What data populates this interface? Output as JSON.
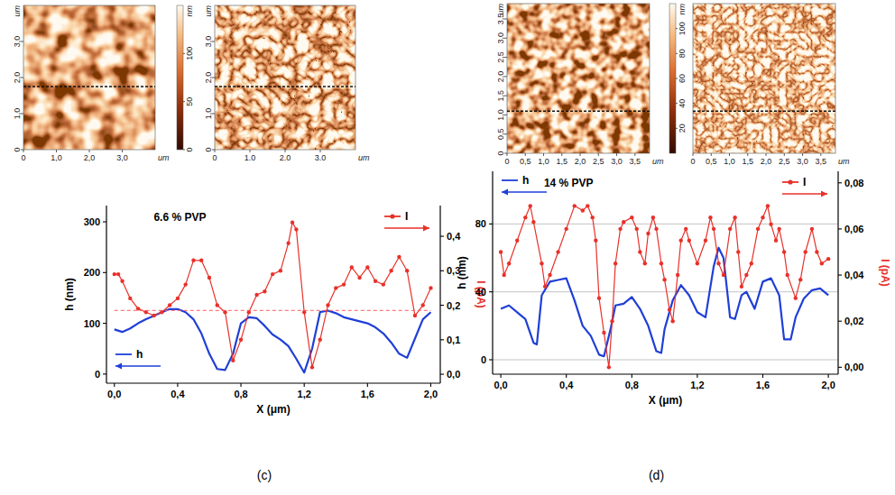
{
  "chart_data": [
    {
      "type": "image",
      "xlim": [
        0,
        4
      ],
      "xticks": [
        0,
        {
          "value": 1,
          "label": "1,0"
        },
        {
          "value": 2,
          "label": "2,0"
        },
        {
          "value": 3,
          "label": "3,0"
        }
      ],
      "x_label": "um",
      "ylim": [
        0,
        4
      ],
      "yticks": [
        0,
        {
          "value": 1,
          "label": "1,0"
        },
        {
          "value": 2,
          "label": "2,0"
        },
        {
          "value": 3,
          "label": "3,0"
        }
      ],
      "y_label": "um",
      "profile_y": 1.75
    },
    {
      "type": "image",
      "xlim": [
        0,
        4
      ],
      "xticks": [
        0,
        {
          "value": 1,
          "label": "1.0"
        },
        {
          "value": 2,
          "label": "2.0"
        },
        {
          "value": 3,
          "label": "3.0"
        }
      ],
      "x_label": "um",
      "ylim": [
        0,
        4
      ],
      "yticks": [
        0,
        {
          "value": 1,
          "label": "1,0"
        },
        {
          "value": 2,
          "label": "2,0"
        },
        {
          "value": 3,
          "label": "3,0"
        }
      ],
      "y_label": "um",
      "profile_y": 1.75,
      "colorbar": {
        "label": "nm",
        "lim": [
          0,
          150
        ],
        "ticks": [
          0,
          50,
          100
        ]
      }
    },
    {
      "type": "image",
      "xlim": [
        0,
        3.9
      ],
      "xticks": [
        0,
        {
          "value": 0.5,
          "label": "0,5"
        },
        {
          "value": 1,
          "label": "1,0"
        },
        {
          "value": 1.5,
          "label": "1,5"
        },
        {
          "value": 2,
          "label": "2,0"
        },
        {
          "value": 2.5,
          "label": "2,5"
        },
        {
          "value": 3,
          "label": "3,0"
        },
        {
          "value": 3.5,
          "label": "3,5"
        }
      ],
      "x_label": "um",
      "ylim": [
        0,
        3.9
      ],
      "yticks": [
        0,
        {
          "value": 0.5,
          "label": "0,5"
        },
        {
          "value": 1,
          "label": "1,0"
        },
        {
          "value": 1.5,
          "label": "1,5"
        },
        {
          "value": 2,
          "label": "2,0"
        },
        {
          "value": 2.5,
          "label": "2,5"
        },
        {
          "value": 3,
          "label": "3,0"
        },
        {
          "value": 3.5,
          "label": "3,5"
        }
      ],
      "y_label": "um",
      "profile_y": 1.1
    },
    {
      "type": "image",
      "xlim": [
        0,
        3.9
      ],
      "xticks": [
        0,
        {
          "value": 0.5,
          "label": "0,5"
        },
        {
          "value": 1,
          "label": "1,0"
        },
        {
          "value": 1.5,
          "label": "1,5"
        },
        {
          "value": 2,
          "label": "2,0"
        },
        {
          "value": 2.5,
          "label": "2,5"
        },
        {
          "value": 3,
          "label": "3,0"
        },
        {
          "value": 3.5,
          "label": "3,5"
        }
      ],
      "x_label": "um",
      "ylim": [
        0,
        3.9
      ],
      "tick_labels": "x",
      "profile_y": 1.1,
      "colorbar": {
        "label": "nm",
        "lim": [
          0,
          120
        ],
        "ticks": [
          20,
          40,
          60,
          80,
          100
        ]
      }
    },
    {
      "type": "line",
      "title": "6.6 % PVP",
      "caption": "(c)",
      "x_label": "X (μm)",
      "y_label": "h (nm)",
      "y2_label": "I (pA)",
      "xlim": [
        -0.05,
        2.06
      ],
      "xticks": [
        {
          "value": 0,
          "label": "0,0"
        },
        {
          "value": 0.4,
          "label": "0,4"
        },
        {
          "value": 0.8,
          "label": "0,8"
        },
        {
          "value": 1.2,
          "label": "1,2"
        },
        {
          "value": 1.6,
          "label": "1,6"
        },
        {
          "value": 2.0,
          "label": "2,0"
        }
      ],
      "ylim": [
        -18,
        332
      ],
      "yticks": [
        0,
        100,
        200,
        300
      ],
      "y2lim": [
        -0.026,
        0.489
      ],
      "y2ticks": [
        {
          "value": 0,
          "label": "0,0"
        },
        {
          "value": 0.1,
          "label": "0,1"
        },
        {
          "value": 0.2,
          "label": "0,2"
        },
        {
          "value": 0.3,
          "label": "0,3"
        },
        {
          "value": 0.4,
          "label": "0,4"
        }
      ],
      "grid": false,
      "legend": "bottom left",
      "series": [
        {
          "name": "h",
          "color": "#1f3fd6",
          "line_style": "solid",
          "x": [
            0,
            0.05,
            0.1,
            0.15,
            0.2,
            0.25,
            0.3,
            0.35,
            0.4,
            0.45,
            0.5,
            0.55,
            0.6,
            0.65,
            0.7,
            0.75,
            0.8,
            0.85,
            0.9,
            0.95,
            1.0,
            1.05,
            1.1,
            1.15,
            1.2,
            1.25,
            1.3,
            1.35,
            1.4,
            1.45,
            1.5,
            1.55,
            1.6,
            1.65,
            1.7,
            1.75,
            1.8,
            1.85,
            1.9,
            1.95,
            2.0
          ],
          "values": [
            88,
            83,
            90,
            100,
            108,
            115,
            122,
            128,
            128,
            122,
            108,
            80,
            40,
            10,
            8,
            40,
            100,
            112,
            110,
            95,
            78,
            68,
            55,
            30,
            3,
            50,
            122,
            125,
            120,
            112,
            108,
            104,
            100,
            92,
            80,
            62,
            40,
            32,
            70,
            108,
            122
          ]
        },
        {
          "name": "I",
          "color": "#e8312a",
          "axis": "y2",
          "marker": "circle",
          "line_style": "solid",
          "x": [
            0,
            0.025,
            0.05,
            0.1,
            0.15,
            0.2,
            0.25,
            0.3,
            0.35,
            0.4,
            0.45,
            0.5,
            0.55,
            0.6,
            0.65,
            0.7,
            0.75,
            0.8,
            0.85,
            0.9,
            0.95,
            1.0,
            1.05,
            1.1,
            1.125,
            1.15,
            1.2,
            1.25,
            1.3,
            1.35,
            1.4,
            1.45,
            1.5,
            1.55,
            1.6,
            1.65,
            1.7,
            1.75,
            1.8,
            1.85,
            1.9,
            1.95,
            2.0
          ],
          "values": [
            0.29,
            0.29,
            0.27,
            0.22,
            0.19,
            0.18,
            0.17,
            0.18,
            0.2,
            0.22,
            0.26,
            0.33,
            0.33,
            0.28,
            0.2,
            0.18,
            0.04,
            0.1,
            0.18,
            0.23,
            0.24,
            0.29,
            0.3,
            0.38,
            0.44,
            0.42,
            0.18,
            0.02,
            0.1,
            0.2,
            0.25,
            0.26,
            0.31,
            0.28,
            0.31,
            0.27,
            0.26,
            0.3,
            0.34,
            0.3,
            0.17,
            0.2,
            0.25
          ]
        },
        {
          "color": "#ff5a5a",
          "axis": "y2",
          "line_style": "dashed",
          "x": [
            0,
            2.0
          ],
          "values": [
            0.185,
            0.185
          ]
        }
      ]
    },
    {
      "type": "line",
      "title": "14 % PVP",
      "caption": "(d)",
      "x_label": "X (μm)",
      "y_label": "h (nm)",
      "y2_label": "I (pA)",
      "xlim": [
        -0.05,
        2.06
      ],
      "xticks": [
        {
          "value": 0,
          "label": "0,0"
        },
        {
          "value": 0.4,
          "label": "0,4"
        },
        {
          "value": 0.8,
          "label": "0,8"
        },
        {
          "value": 1.2,
          "label": "1,2"
        },
        {
          "value": 1.6,
          "label": "1,6"
        },
        {
          "value": 2.0,
          "label": "2,0"
        }
      ],
      "ylim": [
        -8.5,
        111
      ],
      "yticks": [
        0,
        40,
        80
      ],
      "y2lim": [
        -0.003,
        0.085
      ],
      "y2ticks": [
        {
          "value": 0,
          "label": "0,00"
        },
        {
          "value": 0.02,
          "label": "0,02"
        },
        {
          "value": 0.04,
          "label": "0,04"
        },
        {
          "value": 0.06,
          "label": "0,06"
        },
        {
          "value": 0.08,
          "label": "0,08"
        }
      ],
      "grid": true,
      "legend": "top left",
      "series": [
        {
          "name": "h",
          "color": "#1f3fd6",
          "line_style": "solid",
          "x": [
            0,
            0.05,
            0.1,
            0.15,
            0.2,
            0.22,
            0.25,
            0.3,
            0.35,
            0.4,
            0.45,
            0.5,
            0.55,
            0.6,
            0.63,
            0.67,
            0.7,
            0.75,
            0.8,
            0.85,
            0.9,
            0.95,
            0.98,
            1.0,
            1.05,
            1.1,
            1.15,
            1.2,
            1.25,
            1.3,
            1.33,
            1.36,
            1.4,
            1.43,
            1.47,
            1.5,
            1.55,
            1.6,
            1.65,
            1.7,
            1.73,
            1.77,
            1.8,
            1.85,
            1.9,
            1.95,
            2.0
          ],
          "values": [
            30,
            32,
            28,
            24,
            10,
            9,
            38,
            46,
            47,
            48,
            35,
            20,
            14,
            3,
            2,
            18,
            32,
            33,
            37,
            30,
            20,
            5,
            4,
            18,
            35,
            44,
            38,
            28,
            25,
            55,
            66,
            60,
            25,
            24,
            38,
            40,
            30,
            46,
            48,
            38,
            12,
            12,
            25,
            36,
            41,
            42,
            38
          ]
        },
        {
          "name": "I",
          "color": "#e8312a",
          "axis": "y2",
          "marker": "circle",
          "line_style": "solid",
          "x": [
            0,
            0.02,
            0.05,
            0.1,
            0.15,
            0.18,
            0.2,
            0.25,
            0.27,
            0.3,
            0.35,
            0.4,
            0.45,
            0.5,
            0.53,
            0.56,
            0.58,
            0.6,
            0.63,
            0.66,
            0.68,
            0.7,
            0.73,
            0.75,
            0.8,
            0.83,
            0.85,
            0.88,
            0.9,
            0.93,
            0.95,
            0.98,
            1.0,
            1.03,
            1.05,
            1.08,
            1.1,
            1.13,
            1.15,
            1.2,
            1.25,
            1.28,
            1.3,
            1.33,
            1.36,
            1.4,
            1.43,
            1.45,
            1.47,
            1.5,
            1.53,
            1.57,
            1.6,
            1.63,
            1.65,
            1.68,
            1.7,
            1.73,
            1.75,
            1.8,
            1.83,
            1.86,
            1.9,
            1.93,
            1.96,
            2.0
          ],
          "values": [
            0.05,
            0.04,
            0.045,
            0.055,
            0.065,
            0.07,
            0.063,
            0.045,
            0.035,
            0.04,
            0.05,
            0.06,
            0.07,
            0.068,
            0.07,
            0.065,
            0.055,
            0.03,
            0.015,
            0.0,
            0.02,
            0.045,
            0.06,
            0.063,
            0.065,
            0.06,
            0.05,
            0.045,
            0.058,
            0.065,
            0.06,
            0.045,
            0.038,
            0.025,
            0.02,
            0.04,
            0.055,
            0.06,
            0.055,
            0.045,
            0.055,
            0.065,
            0.06,
            0.045,
            0.04,
            0.06,
            0.065,
            0.05,
            0.035,
            0.04,
            0.045,
            0.06,
            0.065,
            0.07,
            0.062,
            0.055,
            0.06,
            0.05,
            0.04,
            0.03,
            0.038,
            0.05,
            0.06,
            0.05,
            0.045,
            0.047
          ]
        }
      ]
    }
  ]
}
